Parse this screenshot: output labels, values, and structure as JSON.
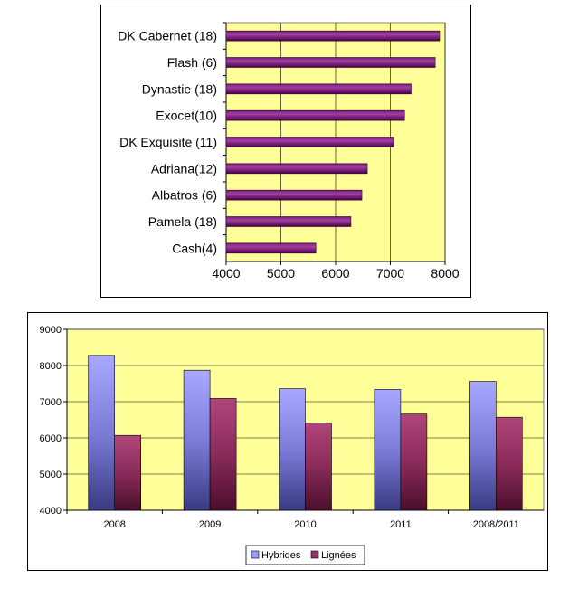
{
  "chart_data": [
    {
      "type": "bar",
      "orientation": "horizontal",
      "categories": [
        "DK Cabernet (18)",
        "Flash (6)",
        "Dynastie (18)",
        "Exocet(10)",
        "DK Exquisite (11)",
        "Adriana(12)",
        "Albatros (6)",
        "Pamela (18)",
        "Cash(4)"
      ],
      "values": [
        7900,
        7820,
        7380,
        7260,
        7060,
        6580,
        6480,
        6280,
        5640
      ],
      "xlim": [
        4000,
        8000
      ],
      "xticks": [
        4000,
        5000,
        6000,
        7000,
        8000
      ],
      "grid": true,
      "colors": {
        "plot_bg": "#ffff99",
        "bar": "#660066"
      }
    },
    {
      "type": "bar",
      "categories": [
        "2008",
        "2009",
        "2010",
        "2011",
        "2008/2011"
      ],
      "series": [
        {
          "name": "Hybrides",
          "values": [
            8280,
            7870,
            7360,
            7340,
            7560
          ],
          "color": "#9999ff"
        },
        {
          "name": "Lignées",
          "values": [
            6070,
            7090,
            6410,
            6660,
            6570
          ],
          "color": "#993366"
        }
      ],
      "ylim": [
        4000,
        9000
      ],
      "yticks": [
        4000,
        5000,
        6000,
        7000,
        8000,
        9000
      ],
      "grid": true,
      "legend": "bottom",
      "colors": {
        "plot_bg": "#ffff99"
      }
    }
  ]
}
